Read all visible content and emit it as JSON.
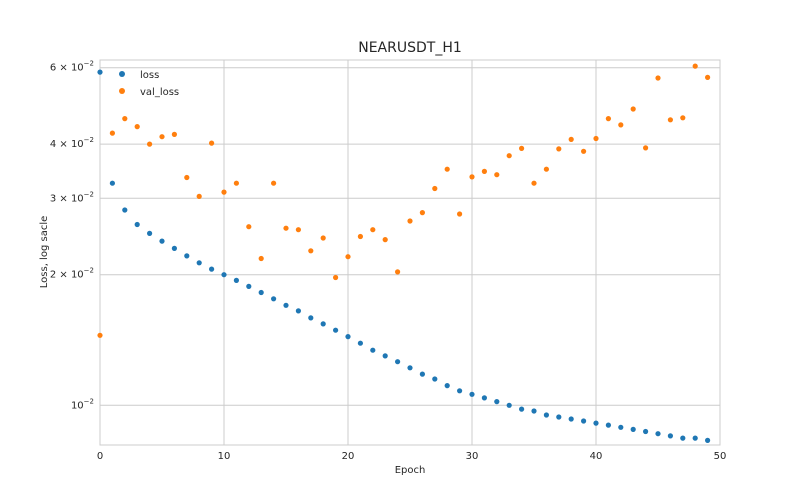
{
  "chart_data": {
    "type": "scatter",
    "title": "NEARUSDT_H1",
    "xlabel": "Epoch",
    "ylabel": "Loss, log sacle",
    "xlim": [
      0,
      50
    ],
    "ylim": [
      0.0081,
      0.0625
    ],
    "yscale": "log",
    "grid": true,
    "legend_position": "top-left",
    "x_ticks": [
      {
        "value": 0,
        "label": "0"
      },
      {
        "value": 10,
        "label": "10"
      },
      {
        "value": 20,
        "label": "20"
      },
      {
        "value": 30,
        "label": "30"
      },
      {
        "value": 40,
        "label": "40"
      },
      {
        "value": 50,
        "label": "50"
      }
    ],
    "y_ticks": [
      {
        "value": 0.01,
        "base": "10",
        "exp": "−2",
        "coef": ""
      },
      {
        "value": 0.02,
        "base": "10",
        "exp": "−2",
        "coef": "2 × "
      },
      {
        "value": 0.03,
        "base": "10",
        "exp": "−2",
        "coef": "3 × "
      },
      {
        "value": 0.04,
        "base": "10",
        "exp": "−2",
        "coef": "4 × "
      },
      {
        "value": 0.06,
        "base": "10",
        "exp": "−2",
        "coef": "6 × "
      }
    ],
    "series": [
      {
        "name": "loss",
        "color": "#1f77b4",
        "x": [
          0,
          1,
          2,
          3,
          4,
          5,
          6,
          7,
          8,
          9,
          10,
          11,
          12,
          13,
          14,
          15,
          16,
          17,
          18,
          19,
          20,
          21,
          22,
          23,
          24,
          25,
          26,
          27,
          28,
          29,
          30,
          31,
          32,
          33,
          34,
          35,
          36,
          37,
          38,
          39,
          40,
          41,
          42,
          43,
          44,
          45,
          46,
          47,
          48,
          49
        ],
        "y": [
          0.0586,
          0.0325,
          0.0282,
          0.0261,
          0.0249,
          0.0239,
          0.023,
          0.0221,
          0.0213,
          0.0206,
          0.02,
          0.0194,
          0.0188,
          0.0182,
          0.0176,
          0.017,
          0.0165,
          0.0159,
          0.0154,
          0.0149,
          0.0144,
          0.0139,
          0.0134,
          0.013,
          0.0126,
          0.0122,
          0.0118,
          0.0115,
          0.0111,
          0.0108,
          0.0106,
          0.0104,
          0.0102,
          0.01,
          0.0098,
          0.0097,
          0.0095,
          0.0094,
          0.0093,
          0.0092,
          0.0091,
          0.009,
          0.0089,
          0.0088,
          0.0087,
          0.0086,
          0.0085,
          0.0084,
          0.0084,
          0.0083
        ]
      },
      {
        "name": "val_loss",
        "color": "#ff7f0e",
        "x": [
          0,
          1,
          2,
          3,
          4,
          5,
          6,
          7,
          8,
          9,
          10,
          11,
          12,
          13,
          14,
          15,
          16,
          17,
          18,
          19,
          20,
          21,
          22,
          23,
          24,
          25,
          26,
          27,
          28,
          29,
          30,
          31,
          32,
          33,
          34,
          35,
          36,
          37,
          38,
          39,
          40,
          41,
          42,
          43,
          44,
          45,
          46,
          47,
          48,
          49
        ],
        "y": [
          0.0145,
          0.0424,
          0.0458,
          0.0439,
          0.04,
          0.0416,
          0.0421,
          0.0335,
          0.0303,
          0.0402,
          0.031,
          0.0325,
          0.0258,
          0.0218,
          0.0325,
          0.0256,
          0.0254,
          0.0227,
          0.0243,
          0.0197,
          0.022,
          0.0245,
          0.0254,
          0.0241,
          0.0203,
          0.0266,
          0.0278,
          0.0316,
          0.035,
          0.0276,
          0.0336,
          0.0346,
          0.034,
          0.0376,
          0.0391,
          0.0325,
          0.035,
          0.039,
          0.041,
          0.0385,
          0.0412,
          0.0458,
          0.0443,
          0.0482,
          0.0392,
          0.0568,
          0.0455,
          0.046,
          0.0605,
          0.057
        ]
      }
    ]
  }
}
